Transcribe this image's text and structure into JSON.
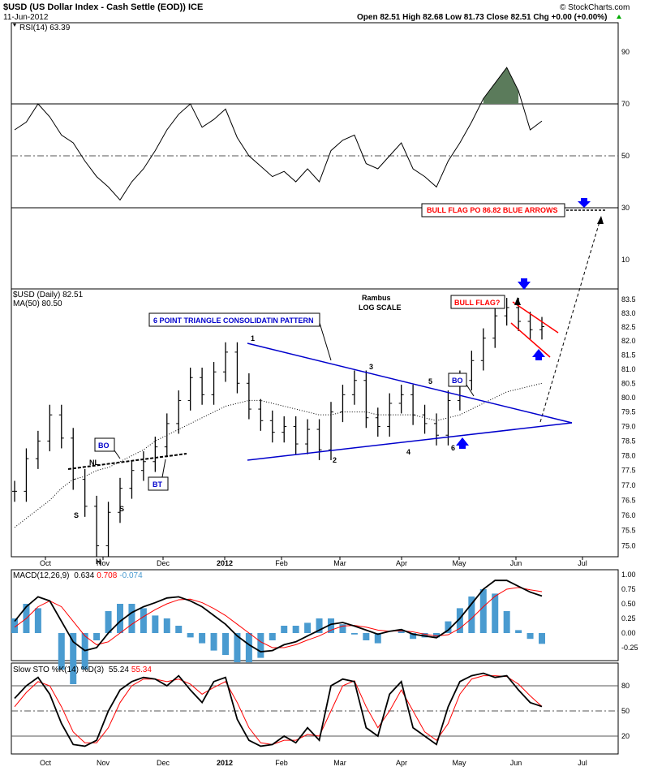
{
  "header": {
    "symbol_title": "$USD (US Dollar Index - Cash Settle (EOD)) ICE",
    "date": "11-Jun-2012",
    "quote": "Open 82.51  High 82.68  Low 81.73  Close 82.51  Chg +0.00 (+0.00%)",
    "quote_arrow_icon": "up-triangle-icon",
    "copyright": "© StockCharts.com"
  },
  "rsi_panel": {
    "label": "RSI(14) 63.39",
    "levels": [
      "90",
      "70",
      "50",
      "30",
      "10"
    ],
    "reference_lines": [
      70,
      50,
      30
    ],
    "overbought_fill_color": "#5b7b5b"
  },
  "price_panel": {
    "label": "$USD (Daily) 82.51",
    "ma_label": "MA(50) 80.50",
    "scale_note": [
      "Rambus",
      "LOG SCALE"
    ],
    "y_ticks": [
      "83.5",
      "83.0",
      "82.5",
      "82.0",
      "81.5",
      "81.0",
      "80.5",
      "80.0",
      "79.5",
      "79.0",
      "78.5",
      "78.0",
      "77.5",
      "77.0",
      "76.5",
      "76.0",
      "75.5",
      "75.0"
    ],
    "annotations": {
      "triangle_box": "6 POINT TRIANGLE CONSOLIDATIN PATTERN",
      "bull_flag_box": "BULL FLAG?",
      "bull_flag_po_box": "BULL FLAG PO 86.82 BLUE ARROWS",
      "bo_left": "BO",
      "bo_right": "BO",
      "bt": "BT",
      "nl": "NL",
      "hs_s1": "S",
      "hs_h": "H",
      "hs_s2": "S",
      "pt1": "1",
      "pt2": "2",
      "pt3": "3",
      "pt4": "4",
      "pt5": "5",
      "pt6": "6"
    },
    "colors": {
      "triangle": "#0000cc",
      "flag": "#ff0000",
      "arrows": "#0000ff"
    }
  },
  "macd_panel": {
    "label_prefix": "MACD(12,26,9)",
    "macd": "0.634",
    "signal": "0.708",
    "hist": "-0.074",
    "y_ticks": [
      "1.00",
      "0.75",
      "0.50",
      "0.25",
      "0.00",
      "-0.25"
    ],
    "colors": {
      "macd": "#000000",
      "signal": "#ff0000",
      "hist": "#4a9bd0"
    }
  },
  "sto_panel": {
    "label_prefix": "Slow STO %K(14) %D(3)",
    "k": "55.24",
    "d": "55.34",
    "y_ticks": [
      "80",
      "50",
      "20"
    ],
    "reference_lines": [
      80,
      50,
      20
    ]
  },
  "x_axis": {
    "labels": [
      "Oct",
      "Nov",
      "Dec",
      "2012",
      "Feb",
      "Mar",
      "Apr",
      "May",
      "Jun",
      "Jul"
    ]
  },
  "chart_data": {
    "type": "line",
    "title": "$USD (US Dollar Index - Cash Settle (EOD)) ICE",
    "series": [
      {
        "name": "$USD (Daily)",
        "values": [
          76.8,
          77.9,
          78.5,
          79.4,
          78.6,
          77.2,
          76.3,
          75.0,
          76.1,
          76.9,
          77.5,
          77.8,
          78.3,
          79.1,
          79.9,
          80.7,
          80.1,
          80.9,
          81.6,
          80.5,
          79.6,
          79.2,
          78.8,
          79.0,
          78.4,
          78.9,
          78.2,
          79.5,
          80.1,
          80.6,
          79.3,
          79.0,
          79.8,
          80.1,
          79.4,
          79.1,
          78.7,
          79.9,
          80.6,
          81.3,
          82.1,
          82.9,
          83.2,
          82.7,
          82.4,
          82.51
        ]
      },
      {
        "name": "MA(50)",
        "values": [
          75.6,
          75.9,
          76.2,
          76.5,
          76.9,
          77.2,
          77.3,
          77.5,
          77.6,
          77.8,
          78.0,
          78.2,
          78.5,
          78.7,
          78.9,
          79.1,
          79.3,
          79.5,
          79.7,
          79.8,
          79.9,
          79.9,
          79.8,
          79.7,
          79.6,
          79.5,
          79.4,
          79.4,
          79.5,
          79.5,
          79.5,
          79.4,
          79.4,
          79.4,
          79.4,
          79.3,
          79.2,
          79.3,
          79.4,
          79.6,
          79.8,
          80.0,
          80.2,
          80.3,
          80.4,
          80.5
        ]
      }
    ],
    "ylim": [
      74.8,
      83.7
    ],
    "log_scale": true,
    "rsi_values": [
      60,
      63,
      70,
      65,
      58,
      55,
      48,
      42,
      38,
      33,
      40,
      45,
      52,
      60,
      66,
      70,
      61,
      64,
      68,
      57,
      50,
      46,
      42,
      44,
      40,
      45,
      40,
      52,
      56,
      58,
      47,
      45,
      50,
      55,
      45,
      42,
      38,
      48,
      55,
      63,
      72,
      78,
      84,
      75,
      60,
      63.39
    ],
    "macd_values": [
      0.2,
      0.45,
      0.62,
      0.55,
      0.2,
      -0.15,
      -0.3,
      -0.25,
      0.0,
      0.2,
      0.35,
      0.45,
      0.52,
      0.6,
      0.62,
      0.55,
      0.45,
      0.3,
      0.15,
      -0.05,
      -0.2,
      -0.32,
      -0.3,
      -0.2,
      -0.15,
      -0.05,
      0.05,
      0.15,
      0.18,
      0.12,
      0.05,
      -0.02,
      0.03,
      0.06,
      -0.02,
      -0.05,
      -0.08,
      0.05,
      0.25,
      0.5,
      0.75,
      0.9,
      0.9,
      0.8,
      0.7,
      0.634
    ],
    "signal_values": [
      0.1,
      0.25,
      0.45,
      0.55,
      0.45,
      0.2,
      -0.05,
      -0.2,
      -0.15,
      0.0,
      0.15,
      0.28,
      0.4,
      0.5,
      0.57,
      0.58,
      0.52,
      0.42,
      0.3,
      0.15,
      0.0,
      -0.15,
      -0.25,
      -0.25,
      -0.2,
      -0.12,
      -0.05,
      0.05,
      0.12,
      0.13,
      0.1,
      0.05,
      0.03,
      0.04,
      0.02,
      -0.02,
      -0.05,
      -0.03,
      0.08,
      0.25,
      0.45,
      0.63,
      0.75,
      0.78,
      0.74,
      0.708
    ],
    "sto_k": [
      65,
      80,
      90,
      70,
      35,
      10,
      8,
      15,
      50,
      75,
      85,
      90,
      88,
      80,
      92,
      75,
      60,
      85,
      90,
      40,
      15,
      8,
      10,
      20,
      12,
      30,
      15,
      80,
      88,
      85,
      30,
      20,
      70,
      85,
      30,
      20,
      10,
      55,
      85,
      92,
      95,
      90,
      92,
      75,
      60,
      55.24
    ],
    "sto_d": [
      55,
      72,
      85,
      80,
      55,
      25,
      12,
      12,
      30,
      60,
      80,
      88,
      88,
      85,
      88,
      82,
      70,
      78,
      85,
      60,
      30,
      12,
      10,
      15,
      15,
      22,
      20,
      50,
      80,
      86,
      55,
      30,
      50,
      75,
      50,
      25,
      15,
      35,
      70,
      88,
      92,
      92,
      91,
      82,
      68,
      55.34
    ]
  }
}
